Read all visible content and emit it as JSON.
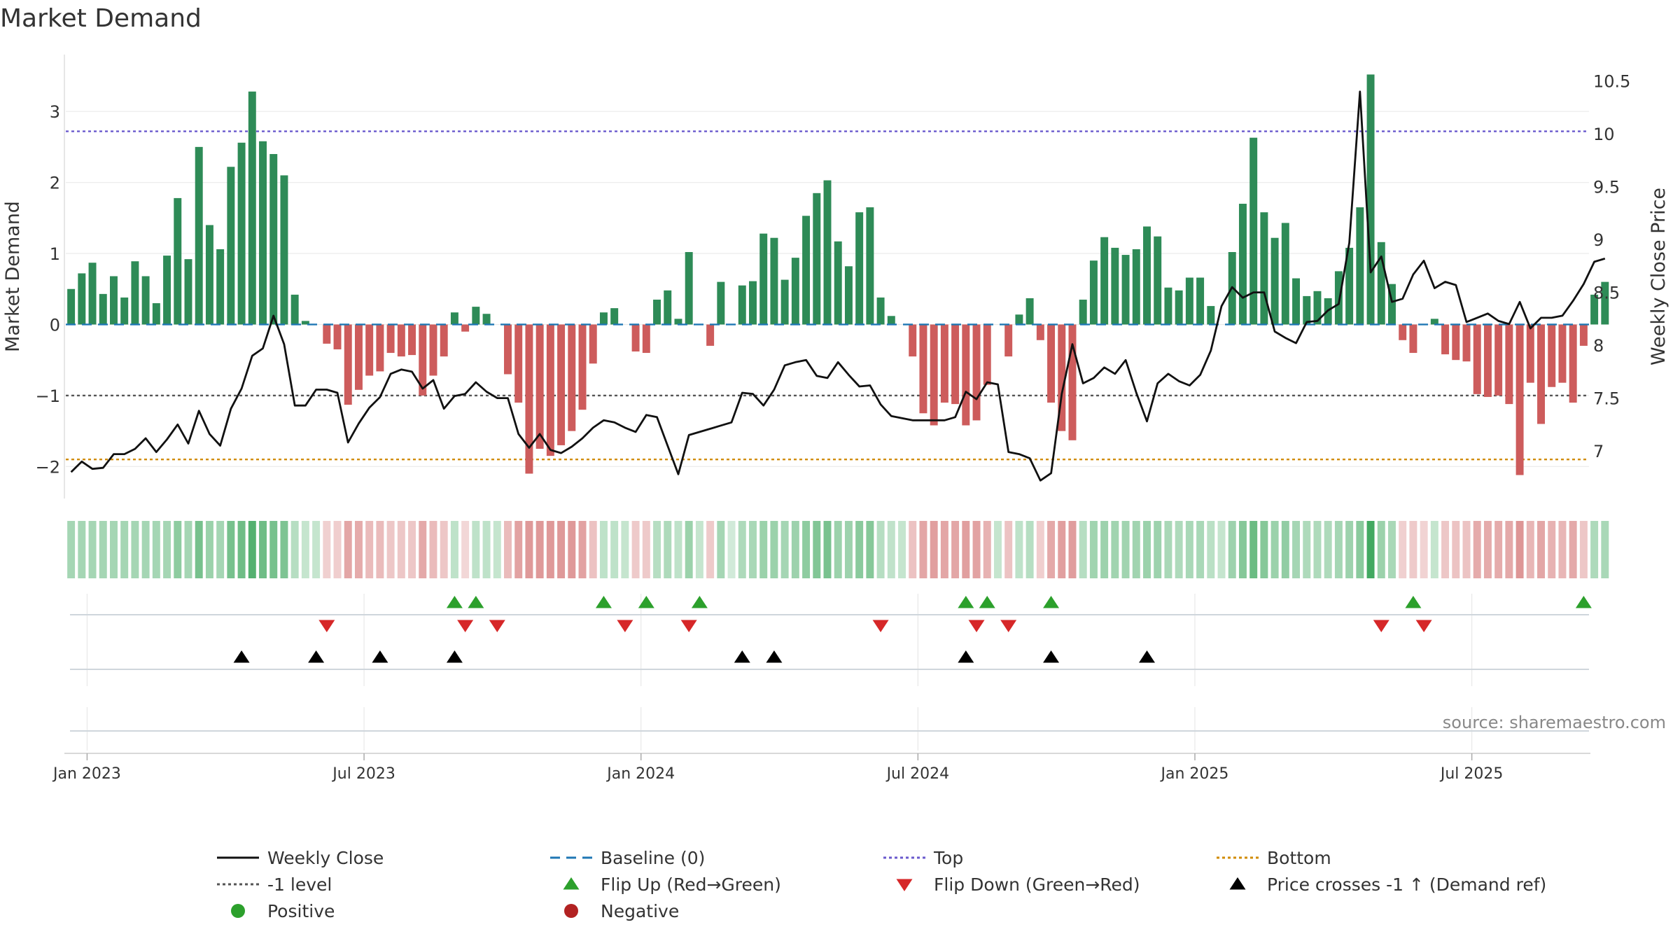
{
  "title": "Market Demand",
  "source": "source: sharemaestro.com",
  "colors": {
    "positive_bar": "#2e8b57",
    "negative_bar": "#cd5c5c",
    "price_line": "#111111",
    "baseline": "#1f77b4",
    "top_line": "#6a5acd",
    "minus1_line": "#555555",
    "bottom_line": "#d18b00",
    "flip_up": "#2ca02c",
    "flip_down": "#d62728",
    "cross_marker": "#000000",
    "positive_dot": "#2ca02c",
    "negative_dot": "#b22222"
  },
  "chart_data": {
    "type": "bar",
    "title": "Market Demand",
    "ylabel": "Market Demand",
    "y2label": "Weekly Close Price",
    "ylim": [
      -2.45,
      3.8
    ],
    "y2lim": [
      6.55,
      10.75
    ],
    "yticks": [
      3,
      2,
      1,
      0,
      -1,
      -2
    ],
    "ytick_labels": [
      "3",
      "2",
      "1",
      "0",
      "−1",
      "−2"
    ],
    "y2ticks": [
      10.5,
      10,
      9.5,
      9,
      8.5,
      8,
      7.5,
      7
    ],
    "y2tick_labels": [
      "10.5",
      "10",
      "9.5",
      "9",
      "8.5",
      "8",
      "7.5",
      "7"
    ],
    "xticks": [
      {
        "label": "Jan 2023",
        "week": 2
      },
      {
        "label": "Jul 2023",
        "week": 28
      },
      {
        "label": "Jan 2024",
        "week": 54
      },
      {
        "label": "Jul 2024",
        "week": 80
      },
      {
        "label": "Jan 2025",
        "week": 106
      },
      {
        "label": "Jul 2025",
        "week": 132
      }
    ],
    "weeks": 143,
    "reference_lines": {
      "top": 2.72,
      "minus1": -1.0,
      "bottom": -1.9,
      "baseline": 0
    },
    "demand": [
      0.5,
      0.72,
      0.87,
      0.43,
      0.68,
      0.38,
      0.89,
      0.68,
      0.3,
      0.97,
      1.78,
      0.92,
      2.5,
      1.4,
      1.06,
      2.22,
      2.56,
      3.28,
      2.58,
      2.4,
      2.1,
      0.42,
      0.05,
      0.0,
      -0.27,
      -0.35,
      -1.13,
      -0.92,
      -0.72,
      -0.66,
      -0.4,
      -0.45,
      -0.43,
      -1.0,
      -0.72,
      -0.45,
      0.17,
      -0.1,
      0.25,
      0.15,
      0.0,
      -0.7,
      -1.1,
      -2.1,
      -1.75,
      -1.85,
      -1.7,
      -1.5,
      -1.2,
      -0.55,
      0.17,
      0.23,
      0.0,
      -0.38,
      -0.4,
      0.35,
      0.48,
      0.08,
      1.02,
      0.0,
      -0.3,
      0.6,
      0.0,
      0.55,
      0.61,
      1.28,
      1.22,
      0.63,
      0.94,
      1.53,
      1.85,
      2.03,
      1.17,
      0.82,
      1.58,
      1.65,
      0.38,
      0.12,
      0.0,
      -0.45,
      -1.25,
      -1.42,
      -1.1,
      -1.12,
      -1.42,
      -1.35,
      -0.85,
      0.0,
      -0.45,
      0.14,
      0.37,
      -0.22,
      -1.1,
      -1.5,
      -1.63,
      0.35,
      0.9,
      1.23,
      1.08,
      0.98,
      1.06,
      1.38,
      1.24,
      0.52,
      0.48,
      0.66,
      0.66,
      0.26,
      0.0,
      1.02,
      1.7,
      2.63,
      1.58,
      1.22,
      1.43,
      0.65,
      0.4,
      0.47,
      0.37,
      0.75,
      1.08,
      1.65,
      3.52,
      1.16,
      0.57,
      -0.22,
      -0.4,
      0.0,
      0.08,
      -0.42,
      -0.5,
      -0.52,
      -0.98,
      -1.02,
      -1.0,
      -1.12,
      -2.12,
      -0.82,
      -1.4,
      -0.88,
      -0.82,
      -1.1,
      -0.3,
      0.42,
      0.6
    ],
    "price": [
      6.8,
      6.9,
      6.83,
      6.84,
      6.97,
      6.97,
      7.02,
      7.12,
      6.99,
      7.11,
      7.25,
      7.07,
      7.38,
      7.16,
      7.05,
      7.4,
      7.59,
      7.9,
      7.97,
      8.28,
      8.01,
      7.43,
      7.43,
      7.58,
      7.58,
      7.55,
      7.08,
      7.26,
      7.41,
      7.51,
      7.73,
      7.77,
      7.75,
      7.59,
      7.67,
      7.4,
      7.52,
      7.54,
      7.65,
      7.56,
      7.5,
      7.5,
      7.16,
      7.03,
      7.16,
      7.01,
      6.98,
      7.04,
      7.12,
      7.22,
      7.29,
      7.27,
      7.22,
      7.18,
      7.34,
      7.32,
      7.05,
      6.78,
      7.15,
      7.18,
      7.21,
      7.24,
      7.27,
      7.55,
      7.54,
      7.43,
      7.58,
      7.81,
      7.84,
      7.86,
      7.71,
      7.69,
      7.84,
      7.72,
      7.61,
      7.62,
      7.44,
      7.33,
      7.31,
      7.29,
      7.29,
      7.29,
      7.29,
      7.32,
      7.56,
      7.49,
      7.65,
      7.63,
      6.99,
      6.97,
      6.93,
      6.72,
      6.79,
      7.54,
      8.01,
      7.64,
      7.69,
      7.79,
      7.73,
      7.86,
      7.55,
      7.28,
      7.64,
      7.73,
      7.66,
      7.62,
      7.72,
      7.95,
      8.37,
      8.55,
      8.45,
      8.5,
      8.5,
      8.13,
      8.07,
      8.02,
      8.22,
      8.23,
      8.33,
      8.39,
      8.97,
      10.4,
      8.69,
      8.84,
      8.41,
      8.44,
      8.67,
      8.8,
      8.54,
      8.6,
      8.57,
      8.22,
      8.26,
      8.3,
      8.23,
      8.2,
      8.41,
      8.16,
      8.26,
      8.26,
      8.28,
      8.42,
      8.58,
      8.79,
      8.82
    ],
    "heat_bins": [
      0.55,
      0.55,
      0.55,
      0.55,
      0.55,
      0.55,
      0.55,
      0.55,
      0.55,
      0.55,
      0.85,
      0.55,
      1.15,
      0.7,
      0.55,
      1.15,
      1.25,
      1.6,
      1.25,
      1.15,
      1.05,
      0.35,
      0.15,
      0.15,
      -0.25,
      -0.3,
      -0.95,
      -0.85,
      -0.6,
      -0.6,
      -0.4,
      -0.4,
      -0.4,
      -0.9,
      -0.6,
      -0.4,
      0.25,
      -0.15,
      0.25,
      0.25,
      0.15,
      -0.6,
      -1.0,
      -1.15,
      -1.15,
      -1.15,
      -1.15,
      -1.15,
      -1.0,
      -0.5,
      0.25,
      0.25,
      0.15,
      -0.35,
      -0.35,
      0.35,
      0.45,
      0.25,
      0.7,
      0.15,
      -0.35,
      0.55,
      0.0,
      0.45,
      0.5,
      0.7,
      0.7,
      0.55,
      0.65,
      0.85,
      1.0,
      1.1,
      0.7,
      0.65,
      0.9,
      0.95,
      0.35,
      0.2,
      0.15,
      -0.5,
      -0.95,
      -1.05,
      -0.95,
      -0.95,
      -1.05,
      -1.0,
      -0.75,
      0.15,
      -0.45,
      0.25,
      0.35,
      -0.3,
      -0.9,
      -1.05,
      -1.1,
      0.35,
      0.6,
      0.65,
      0.6,
      0.6,
      0.6,
      0.7,
      0.65,
      0.5,
      0.45,
      0.5,
      0.5,
      0.3,
      0.15,
      0.65,
      0.95,
      1.3,
      0.95,
      0.7,
      0.8,
      0.55,
      0.45,
      0.45,
      0.45,
      0.55,
      0.65,
      0.9,
      1.8,
      0.7,
      0.5,
      -0.25,
      -0.35,
      -0.2,
      0.15,
      -0.4,
      -0.45,
      -0.45,
      -0.85,
      -0.85,
      -0.85,
      -0.9,
      -1.2,
      -0.7,
      -0.95,
      -0.75,
      -0.7,
      -0.9,
      -0.4,
      0.45,
      0.5
    ],
    "flip_up_weeks": [
      36,
      38,
      50,
      54,
      59,
      84,
      86,
      92,
      126,
      142
    ],
    "flip_down_weeks": [
      24,
      37,
      40,
      52,
      58,
      76,
      85,
      88,
      123,
      127
    ],
    "price_cross_weeks": [
      16,
      23,
      29,
      36,
      63,
      66,
      84,
      92,
      101
    ],
    "legend": [
      {
        "label": "Weekly Close",
        "kind": "solid-line",
        "color": "#111111"
      },
      {
        "label": "Baseline (0)",
        "kind": "dash-line",
        "color": "#1f77b4"
      },
      {
        "label": "Top",
        "kind": "dot-line",
        "color": "#6a5acd"
      },
      {
        "label": "Bottom",
        "kind": "dot-line",
        "color": "#d18b00"
      },
      {
        "label": "-1 level",
        "kind": "dot-line",
        "color": "#555555"
      },
      {
        "label": "Flip Up (Red→Green)",
        "kind": "tri-up",
        "color": "#2ca02c"
      },
      {
        "label": "Flip Down (Green→Red)",
        "kind": "tri-down",
        "color": "#d62728"
      },
      {
        "label": "Price crosses -1 ↑ (Demand ref)",
        "kind": "tri-up",
        "color": "#000000"
      },
      {
        "label": "Positive",
        "kind": "dot",
        "color": "#2ca02c"
      },
      {
        "label": "Negative",
        "kind": "dot",
        "color": "#b22222"
      }
    ]
  }
}
